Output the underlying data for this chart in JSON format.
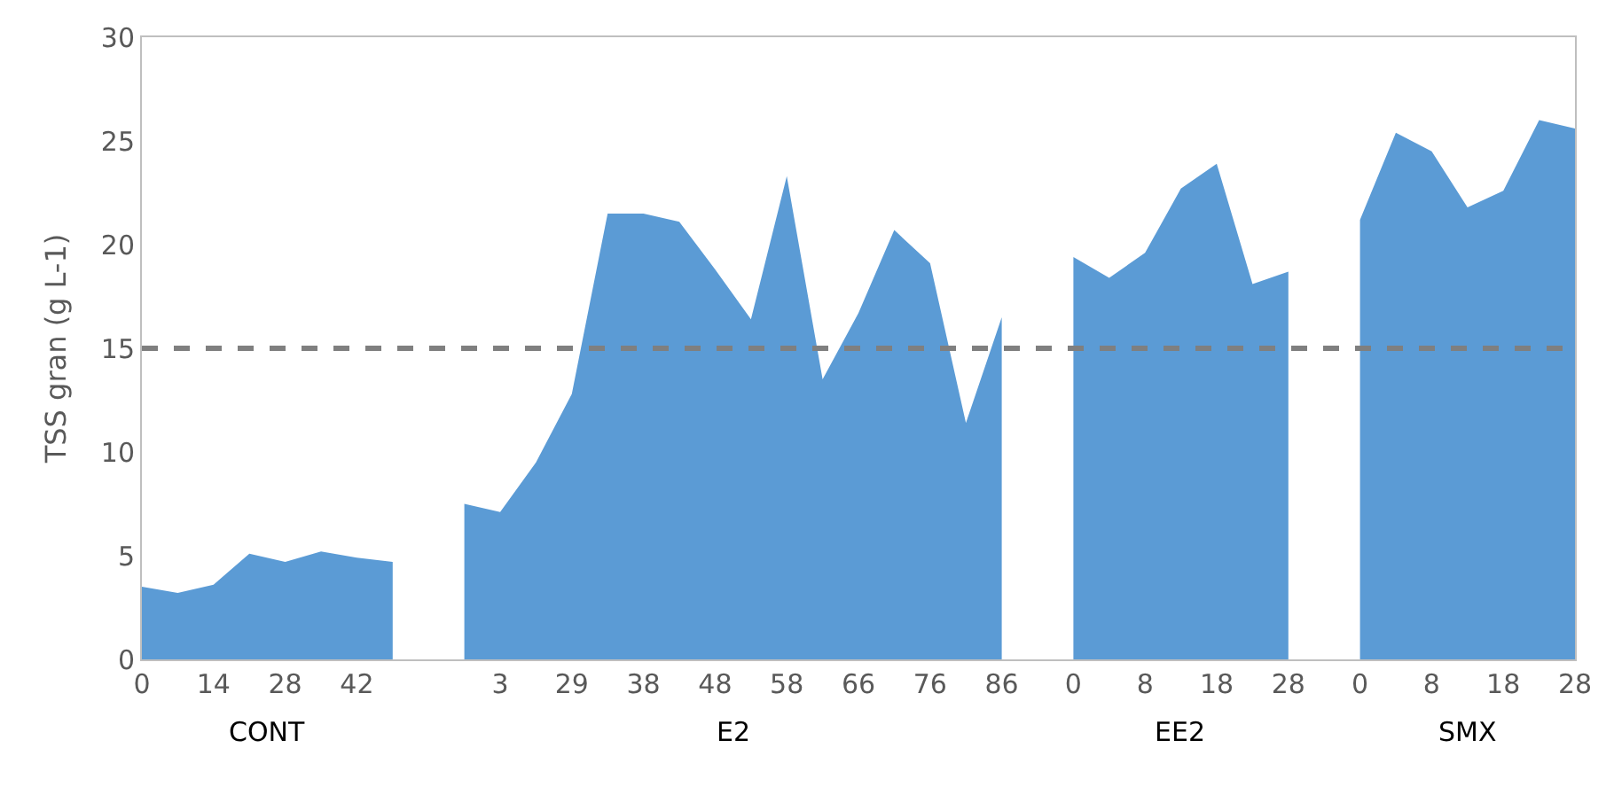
{
  "chart_data": {
    "type": "area",
    "ylabel": "TSS gran (g L-1)",
    "categories": [
      "0",
      null,
      "14",
      null,
      "28",
      null,
      "42",
      null,
      null,
      null,
      "3",
      null,
      "29",
      null,
      "38",
      null,
      "48",
      null,
      "58",
      null,
      "66",
      null,
      "76",
      null,
      "86",
      null,
      "0",
      null,
      "8",
      null,
      "18",
      null,
      "28",
      null,
      "0",
      null,
      "8",
      null,
      "18",
      null,
      "28"
    ],
    "series": [
      {
        "color": "#5b9bd5",
        "values": [
          3.5,
          3.2,
          3.6,
          5.1,
          4.7,
          5.2,
          4.9,
          4.7,
          null,
          7.5,
          7.1,
          9.5,
          12.8,
          21.5,
          21.5,
          21.1,
          18.8,
          16.4,
          23.3,
          13.5,
          16.7,
          20.7,
          19.1,
          11.4,
          16.5,
          null,
          19.4,
          18.4,
          19.6,
          22.7,
          23.9,
          18.1,
          18.7,
          null,
          21.2,
          25.4,
          24.5,
          21.8,
          22.6,
          26.0,
          25.6
        ]
      }
    ],
    "ylim": [
      0,
      30
    ],
    "yticks": [
      0,
      5,
      10,
      15,
      20,
      25,
      30
    ],
    "ref_lines": [
      {
        "axis": "y",
        "value": 15,
        "color": "#7f7f7f",
        "line_style": "dashed"
      }
    ],
    "annotations": [
      "CONT",
      "E2",
      "EE2",
      "SMX"
    ]
  }
}
